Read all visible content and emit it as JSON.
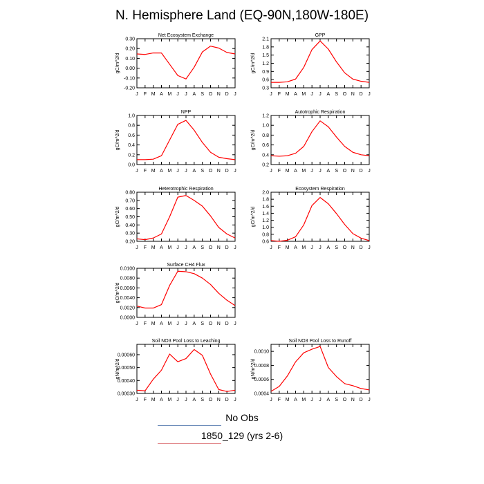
{
  "title": "N. Hemisphere Land (EQ-90N,180W-180E)",
  "legend": [
    {
      "label": "No Obs",
      "color": "#6a8ab8"
    },
    {
      "label": "1850_129 (yrs 2-6)",
      "color": "#e2898c"
    }
  ],
  "line_color": "#ff0000",
  "chart_data": [
    {
      "type": "line",
      "title": "Net Ecosystem Exchange",
      "ylabel": "gC/m^2/d",
      "xticks": [
        "J",
        "F",
        "M",
        "A",
        "M",
        "J",
        "J",
        "A",
        "S",
        "O",
        "N",
        "D",
        "J"
      ],
      "yticks": [
        "0.30",
        "0.20",
        "0.10",
        "0.00",
        "-0.10",
        "-0.20"
      ],
      "ylim": [
        -0.2,
        0.3
      ],
      "series": [
        {
          "values": [
            0.145,
            0.14,
            0.155,
            0.155,
            0.04,
            -0.075,
            -0.11,
            0.01,
            0.165,
            0.225,
            0.205,
            0.16,
            0.145
          ]
        }
      ]
    },
    {
      "type": "line",
      "title": "GPP",
      "ylabel": "gC/m^2/d",
      "xticks": [
        "J",
        "F",
        "M",
        "A",
        "M",
        "J",
        "J",
        "A",
        "S",
        "O",
        "N",
        "D",
        "J"
      ],
      "yticks": [
        "2.1",
        "1.8",
        "1.5",
        "1.2",
        "0.9",
        "0.6",
        "0.3"
      ],
      "ylim": [
        0.3,
        2.1
      ],
      "series": [
        {
          "values": [
            0.5,
            0.5,
            0.52,
            0.62,
            1.05,
            1.7,
            2.02,
            1.72,
            1.25,
            0.85,
            0.62,
            0.54,
            0.5
          ]
        }
      ]
    },
    {
      "type": "line",
      "title": "NPP",
      "ylabel": "gC/m^2/d",
      "xticks": [
        "J",
        "F",
        "M",
        "A",
        "M",
        "J",
        "J",
        "A",
        "S",
        "O",
        "N",
        "D",
        "J"
      ],
      "yticks": [
        "1.0",
        "0.8",
        "0.6",
        "0.4",
        "0.2",
        "0.0"
      ],
      "ylim": [
        0.0,
        1.0
      ],
      "series": [
        {
          "values": [
            0.1,
            0.1,
            0.11,
            0.18,
            0.5,
            0.82,
            0.9,
            0.7,
            0.45,
            0.25,
            0.15,
            0.12,
            0.1
          ]
        }
      ]
    },
    {
      "type": "line",
      "title": "Autotrophic Respiration",
      "ylabel": "gC/m^2/d",
      "xticks": [
        "J",
        "F",
        "M",
        "A",
        "M",
        "J",
        "J",
        "A",
        "S",
        "O",
        "N",
        "D",
        "J"
      ],
      "yticks": [
        "1.2",
        "1.0",
        "0.8",
        "0.6",
        "0.4",
        "0.2"
      ],
      "ylim": [
        0.2,
        1.2
      ],
      "series": [
        {
          "values": [
            0.38,
            0.37,
            0.38,
            0.43,
            0.57,
            0.87,
            1.09,
            0.97,
            0.76,
            0.57,
            0.45,
            0.4,
            0.38
          ]
        }
      ]
    },
    {
      "type": "line",
      "title": "Heterotrophic Respiration",
      "ylabel": "gC/m^2/d",
      "xticks": [
        "J",
        "F",
        "M",
        "A",
        "M",
        "J",
        "J",
        "A",
        "S",
        "O",
        "N",
        "D",
        "J"
      ],
      "yticks": [
        "0.80",
        "0.70",
        "0.60",
        "0.50",
        "0.40",
        "0.30",
        "0.20"
      ],
      "ylim": [
        0.2,
        0.8
      ],
      "series": [
        {
          "values": [
            0.23,
            0.22,
            0.24,
            0.29,
            0.5,
            0.74,
            0.76,
            0.7,
            0.63,
            0.51,
            0.37,
            0.29,
            0.24
          ]
        }
      ]
    },
    {
      "type": "line",
      "title": "Ecosystem Respiration",
      "ylabel": "gC/m^2/d",
      "xticks": [
        "J",
        "F",
        "M",
        "A",
        "M",
        "J",
        "J",
        "A",
        "S",
        "O",
        "N",
        "D",
        "J"
      ],
      "yticks": [
        "2.0",
        "1.8",
        "1.6",
        "1.4",
        "1.2",
        "1.0",
        "0.8",
        "0.6"
      ],
      "ylim": [
        0.6,
        2.0
      ],
      "series": [
        {
          "values": [
            0.62,
            0.6,
            0.63,
            0.73,
            1.07,
            1.62,
            1.85,
            1.67,
            1.39,
            1.08,
            0.82,
            0.69,
            0.62
          ]
        }
      ]
    },
    {
      "type": "line",
      "title": "Surface CH4 Flux",
      "ylabel": "gC/m^2/d",
      "xticks": [
        "J",
        "F",
        "M",
        "A",
        "M",
        "J",
        "J",
        "A",
        "S",
        "O",
        "N",
        "D",
        "J"
      ],
      "yticks": [
        "0.0100",
        "0.0080",
        "0.0060",
        "0.0040",
        "0.0020",
        "0.0000"
      ],
      "ylim": [
        0.0,
        0.01
      ],
      "series": [
        {
          "values": [
            0.0023,
            0.0019,
            0.0019,
            0.0026,
            0.0065,
            0.0094,
            0.0093,
            0.0089,
            0.008,
            0.0067,
            0.0049,
            0.0035,
            0.0024
          ]
        }
      ]
    },
    {
      "type": "line",
      "title": "Soil NO3 Pool Loss to Leaching",
      "ylabel": "gN/m^2/d",
      "xticks": [
        "J",
        "F",
        "M",
        "A",
        "M",
        "J",
        "J",
        "A",
        "S",
        "O",
        "N",
        "D",
        "J"
      ],
      "yticks": [
        "0.00060",
        "0.00050",
        "0.00040",
        "0.00030"
      ],
      "ylim": [
        0.0003,
        0.00068
      ],
      "series": [
        {
          "values": [
            0.000325,
            0.00032,
            0.00041,
            0.00048,
            0.000605,
            0.000545,
            0.00057,
            0.00064,
            0.000595,
            0.00045,
            0.00033,
            0.000315,
            0.000325
          ]
        }
      ]
    },
    {
      "type": "line",
      "title": "Soil NO3 Pool Loss to Runoff",
      "ylabel": "gN/m^2/d",
      "xticks": [
        "J",
        "F",
        "M",
        "A",
        "M",
        "J",
        "J",
        "A",
        "S",
        "O",
        "N",
        "D",
        "J"
      ],
      "yticks": [
        "0.0010",
        "0.0008",
        "0.0006",
        "0.0004"
      ],
      "ylim": [
        0.0004,
        0.0011
      ],
      "series": [
        {
          "values": [
            0.00043,
            0.0005,
            0.00065,
            0.00085,
            0.00098,
            0.00103,
            0.00107,
            0.00077,
            0.00064,
            0.00054,
            0.00051,
            0.00047,
            0.00045
          ]
        }
      ]
    }
  ]
}
